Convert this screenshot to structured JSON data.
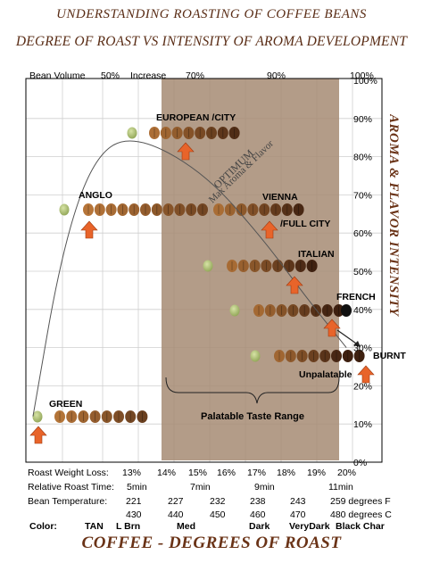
{
  "titles": {
    "line1": "UNDERSTANDING ROASTING OF COFFEE BEANS",
    "line2": "DEGREE OF ROAST VS INTENSITY OF AROMA DEVELOPMENT",
    "x_axis_title": "COFFEE - DEGREES OF ROAST",
    "y_axis_title": "AROMA & FLAVOR INTENSITY"
  },
  "top_axis": {
    "label1": "Bean Volume",
    "label2": "50%",
    "label3": "Increase",
    "label4": "70%",
    "label5": "90%",
    "label6": "100%"
  },
  "annotations": {
    "optimum1": "OPTIMUM",
    "optimum2": "Max Aroma & Flavor",
    "palatable": "Palatable Taste Range",
    "unpalatable": "Unpalatable"
  },
  "table": {
    "weight_loss_label": "Roast Weight Loss:",
    "weight_loss": [
      "13%",
      "14%",
      "15%",
      "16%",
      "17%",
      "18%",
      "19%",
      "20%"
    ],
    "time_label": "Relative Roast Time:",
    "times": [
      "5min",
      "7min",
      "9min",
      "11min"
    ],
    "temp_label": "Bean Temperature:",
    "temps_f": [
      "221",
      "227",
      "232",
      "238",
      "243",
      "259 degrees F"
    ],
    "temps_c": [
      "430",
      "440",
      "450",
      "460",
      "470",
      "480 degrees C"
    ],
    "color_label": "Color:",
    "colors": [
      "TAN",
      "L Brn",
      "Med",
      "Dark",
      "VeryDark",
      "Black Char"
    ]
  },
  "colors": {
    "title": "#5a2d16",
    "shade": "#a68b73",
    "arrow": "#e8642a",
    "green_bean": "#9fb36a",
    "brown_light": "#b8773a",
    "brown_dark": "#3e2010"
  },
  "chart_data": {
    "type": "scatter",
    "ylabel": "AROMA & FLAVOR INTENSITY",
    "ylim": [
      0,
      100
    ],
    "y_ticks": [
      "0%",
      "10%",
      "20%",
      "30%",
      "40%",
      "50%",
      "60%",
      "70%",
      "80%",
      "90%",
      "100%"
    ],
    "shaded_region": "Palatable Taste Range",
    "series": [
      {
        "name": "GREEN",
        "value": 12
      },
      {
        "name": "ANGLO",
        "value": 66
      },
      {
        "name": "EUROPEAN /CITY",
        "value": 86
      },
      {
        "name": "VIENNA",
        "value": 66
      },
      {
        "name": "/FULL CITY",
        "value": 60
      },
      {
        "name": "ITALIAN",
        "value": 52
      },
      {
        "name": "FRENCH",
        "value": 40
      },
      {
        "name": "BURNT",
        "value": 28
      }
    ],
    "curve": [
      [
        2,
        12
      ],
      [
        10,
        55
      ],
      [
        19,
        80
      ],
      [
        30,
        86
      ],
      [
        50,
        76
      ],
      [
        67,
        58
      ],
      [
        78,
        44
      ],
      [
        90,
        30
      ]
    ]
  }
}
